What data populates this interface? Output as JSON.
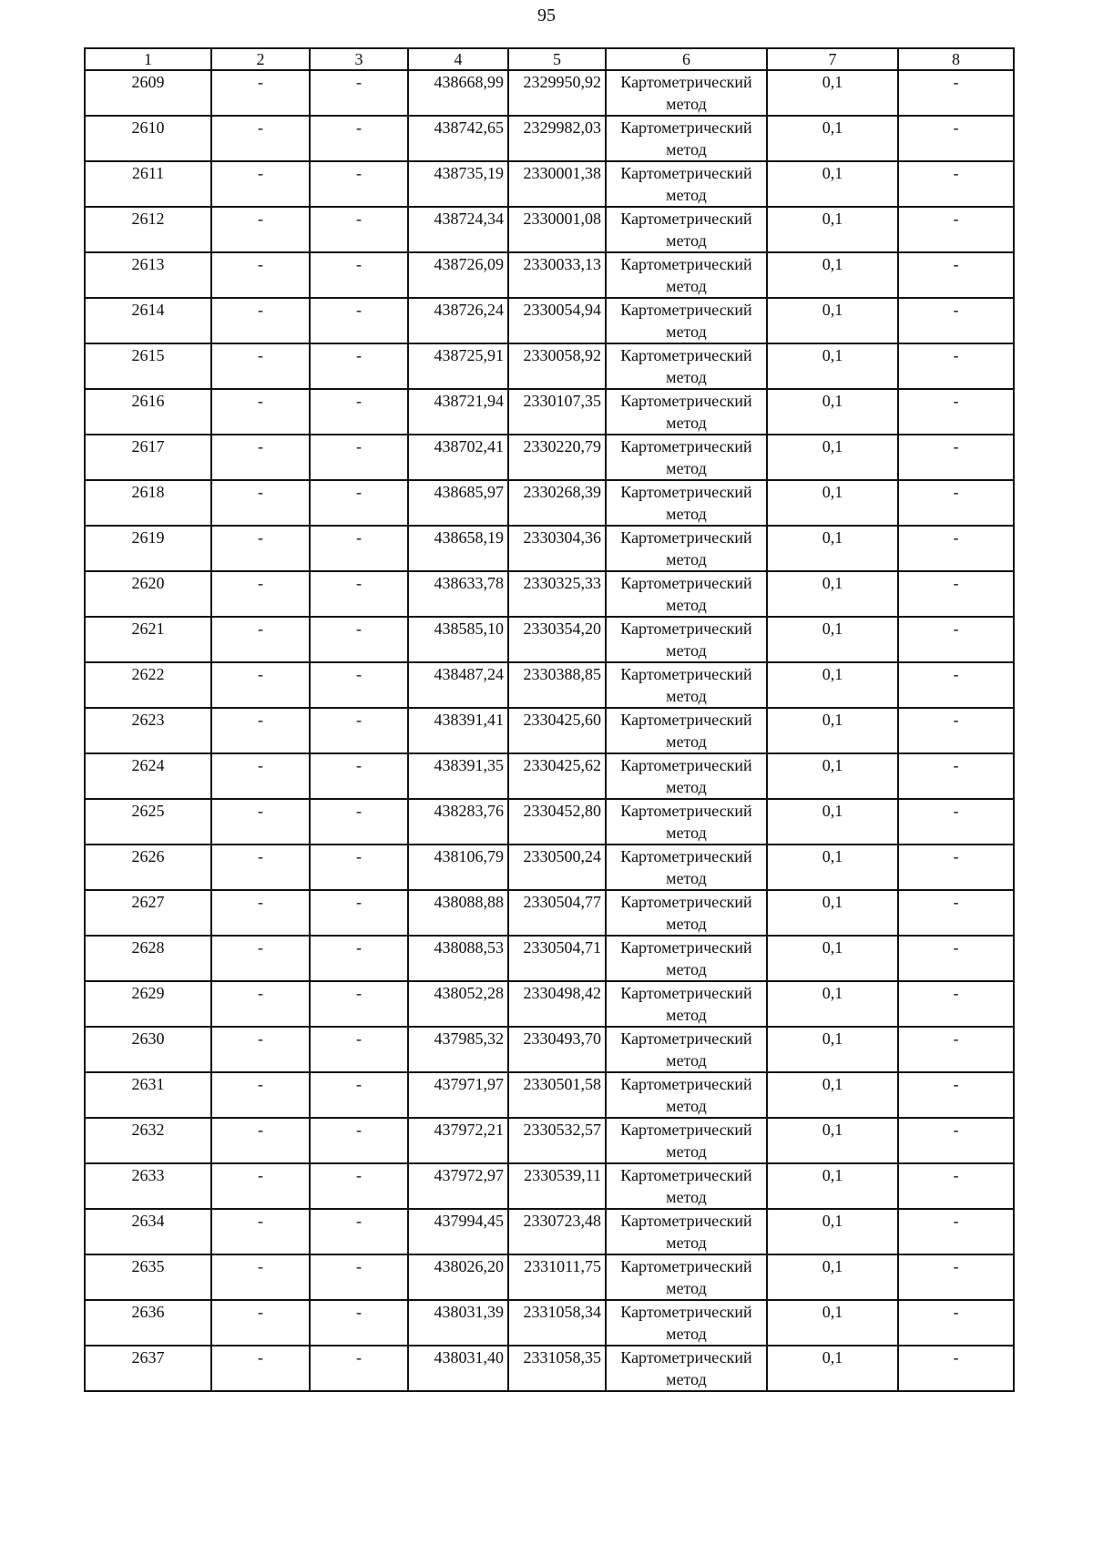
{
  "page_number": "95",
  "table": {
    "headers": [
      "1",
      "2",
      "3",
      "4",
      "5",
      "6",
      "7",
      "8"
    ],
    "rows": [
      [
        "2609",
        "-",
        "-",
        "438668,99",
        "2329950,92",
        "Картометрический метод",
        "0,1",
        "-"
      ],
      [
        "2610",
        "-",
        "-",
        "438742,65",
        "2329982,03",
        "Картометрический метод",
        "0,1",
        "-"
      ],
      [
        "2611",
        "-",
        "-",
        "438735,19",
        "2330001,38",
        "Картометрический метод",
        "0,1",
        "-"
      ],
      [
        "2612",
        "-",
        "-",
        "438724,34",
        "2330001,08",
        "Картометрический метод",
        "0,1",
        "-"
      ],
      [
        "2613",
        "-",
        "-",
        "438726,09",
        "2330033,13",
        "Картометрический метод",
        "0,1",
        "-"
      ],
      [
        "2614",
        "-",
        "-",
        "438726,24",
        "2330054,94",
        "Картометрический метод",
        "0,1",
        "-"
      ],
      [
        "2615",
        "-",
        "-",
        "438725,91",
        "2330058,92",
        "Картометрический метод",
        "0,1",
        "-"
      ],
      [
        "2616",
        "-",
        "-",
        "438721,94",
        "2330107,35",
        "Картометрический метод",
        "0,1",
        "-"
      ],
      [
        "2617",
        "-",
        "-",
        "438702,41",
        "2330220,79",
        "Картометрический метод",
        "0,1",
        "-"
      ],
      [
        "2618",
        "-",
        "-",
        "438685,97",
        "2330268,39",
        "Картометрический метод",
        "0,1",
        "-"
      ],
      [
        "2619",
        "-",
        "-",
        "438658,19",
        "2330304,36",
        "Картометрический метод",
        "0,1",
        "-"
      ],
      [
        "2620",
        "-",
        "-",
        "438633,78",
        "2330325,33",
        "Картометрический метод",
        "0,1",
        "-"
      ],
      [
        "2621",
        "-",
        "-",
        "438585,10",
        "2330354,20",
        "Картометрический метод",
        "0,1",
        "-"
      ],
      [
        "2622",
        "-",
        "-",
        "438487,24",
        "2330388,85",
        "Картометрический метод",
        "0,1",
        "-"
      ],
      [
        "2623",
        "-",
        "-",
        "438391,41",
        "2330425,60",
        "Картометрический метод",
        "0,1",
        "-"
      ],
      [
        "2624",
        "-",
        "-",
        "438391,35",
        "2330425,62",
        "Картометрический метод",
        "0,1",
        "-"
      ],
      [
        "2625",
        "-",
        "-",
        "438283,76",
        "2330452,80",
        "Картометрический метод",
        "0,1",
        "-"
      ],
      [
        "2626",
        "-",
        "-",
        "438106,79",
        "2330500,24",
        "Картометрический метод",
        "0,1",
        "-"
      ],
      [
        "2627",
        "-",
        "-",
        "438088,88",
        "2330504,77",
        "Картометрический метод",
        "0,1",
        "-"
      ],
      [
        "2628",
        "-",
        "-",
        "438088,53",
        "2330504,71",
        "Картометрический метод",
        "0,1",
        "-"
      ],
      [
        "2629",
        "-",
        "-",
        "438052,28",
        "2330498,42",
        "Картометрический метод",
        "0,1",
        "-"
      ],
      [
        "2630",
        "-",
        "-",
        "437985,32",
        "2330493,70",
        "Картометрический метод",
        "0,1",
        "-"
      ],
      [
        "2631",
        "-",
        "-",
        "437971,97",
        "2330501,58",
        "Картометрический метод",
        "0,1",
        "-"
      ],
      [
        "2632",
        "-",
        "-",
        "437972,21",
        "2330532,57",
        "Картометрический метод",
        "0,1",
        "-"
      ],
      [
        "2633",
        "-",
        "-",
        "437972,97",
        "2330539,11",
        "Картометрический метод",
        "0,1",
        "-"
      ],
      [
        "2634",
        "-",
        "-",
        "437994,45",
        "2330723,48",
        "Картометрический метод",
        "0,1",
        "-"
      ],
      [
        "2635",
        "-",
        "-",
        "438026,20",
        "2331011,75",
        "Картометрический метод",
        "0,1",
        "-"
      ],
      [
        "2636",
        "-",
        "-",
        "438031,39",
        "2331058,34",
        "Картометрический метод",
        "0,1",
        "-"
      ],
      [
        "2637",
        "-",
        "-",
        "438031,40",
        "2331058,35",
        "Картометрический метод",
        "0,1",
        "-"
      ]
    ]
  }
}
